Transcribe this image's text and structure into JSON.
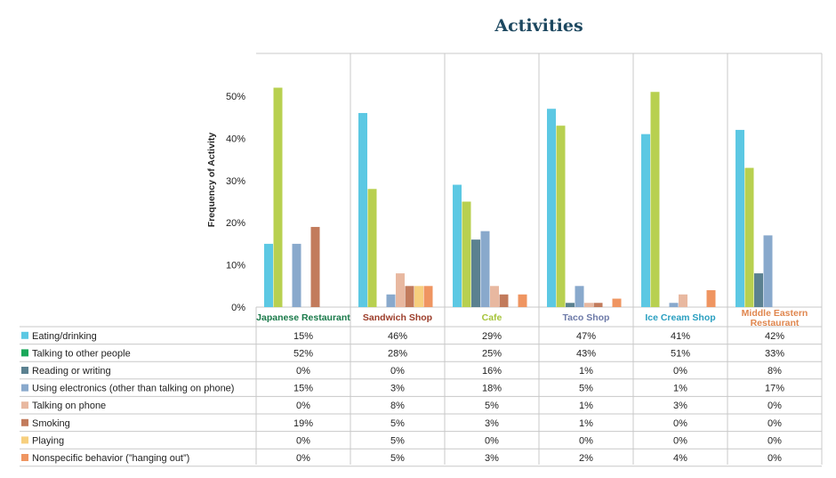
{
  "chart_data": {
    "type": "bar",
    "title": "Activities",
    "ylabel": "Frequency of Activity",
    "ylim": [
      0,
      50
    ],
    "yticks": [
      "0%",
      "10%",
      "20%",
      "30%",
      "40%",
      "50%"
    ],
    "categories": [
      "Japanese Restaurant",
      "Sandwich Shop",
      "Cafe",
      "Taco Shop",
      "Ice Cream Shop",
      "Middle Eastern Restaurant"
    ],
    "category_colors": [
      "#1a7a4a",
      "#9c3d2a",
      "#a6c43a",
      "#6d7aa8",
      "#2a9fc0",
      "#e0874f"
    ],
    "series": [
      {
        "name": "Eating/drinking",
        "color": "#5cc8e3",
        "values": [
          15,
          46,
          29,
          47,
          41,
          42
        ],
        "labels": [
          "15%",
          "46%",
          "29%",
          "47%",
          "41%",
          "42%"
        ]
      },
      {
        "name": "Talking to other people",
        "color": "#b8d050",
        "values": [
          52,
          28,
          25,
          43,
          51,
          33
        ],
        "labels": [
          "52%",
          "28%",
          "25%",
          "43%",
          "51%",
          "33%"
        ]
      },
      {
        "name": "Reading or writing",
        "color": "#5b8190",
        "values": [
          0,
          0,
          16,
          1,
          0,
          8
        ],
        "labels": [
          "0%",
          "0%",
          "16%",
          "1%",
          "0%",
          "8%"
        ]
      },
      {
        "name": "Using electronics (other than talking on phone)",
        "color": "#89a9cc",
        "values": [
          15,
          3,
          18,
          5,
          1,
          17
        ],
        "labels": [
          "15%",
          "3%",
          "18%",
          "5%",
          "1%",
          "17%"
        ]
      },
      {
        "name": "Talking on phone",
        "color": "#e8b8a0",
        "values": [
          0,
          8,
          5,
          1,
          3,
          0
        ],
        "labels": [
          "0%",
          "8%",
          "5%",
          "1%",
          "3%",
          "0%"
        ]
      },
      {
        "name": "Smoking",
        "color": "#c27b5c",
        "values": [
          19,
          5,
          3,
          1,
          0,
          0
        ],
        "labels": [
          "19%",
          "5%",
          "3%",
          "1%",
          "0%",
          "0%"
        ]
      },
      {
        "name": "Playing",
        "color": "#f7cf7e",
        "values": [
          0,
          5,
          0,
          0,
          0,
          0
        ],
        "labels": [
          "0%",
          "5%",
          "0%",
          "0%",
          "0%",
          "0%"
        ]
      },
      {
        "name": "Nonspecific behavior (”hanging out”)",
        "color": "#ef9561",
        "values": [
          0,
          5,
          3,
          2,
          4,
          0
        ],
        "labels": [
          "0%",
          "5%",
          "3%",
          "2%",
          "4%",
          "0%"
        ]
      }
    ]
  },
  "legend_marker_colors": [
    "#5cc8e3",
    "#1aa85a",
    "#5b8190",
    "#89a9cc",
    "#e8b8a0",
    "#c27b5c",
    "#f7cf7e",
    "#ef9561"
  ]
}
